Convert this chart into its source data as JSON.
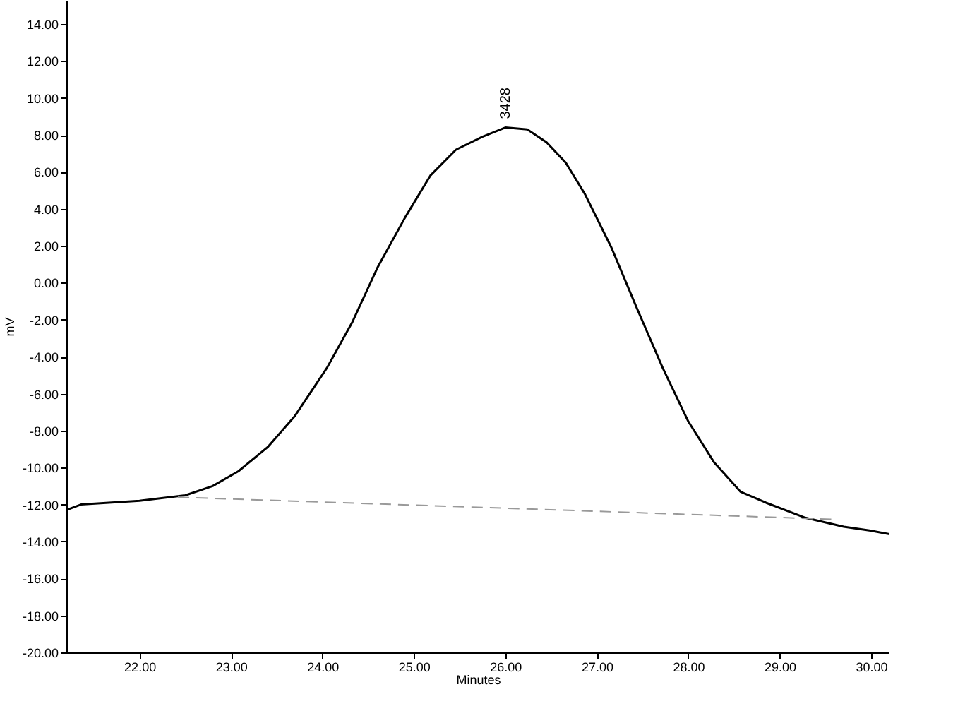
{
  "chart_data": {
    "type": "line",
    "xlabel": "Minutes",
    "ylabel": "mV",
    "marker": "none",
    "xlim": [
      21.2,
      30.2
    ],
    "ylim": [
      -20,
      15.3
    ],
    "xticks": [
      {
        "value": 22,
        "label": "22.00"
      },
      {
        "value": 23,
        "label": "23.00"
      },
      {
        "value": 24,
        "label": "24.00"
      },
      {
        "value": 25,
        "label": "25.00"
      },
      {
        "value": 26,
        "label": "26.00"
      },
      {
        "value": 27,
        "label": "27.00"
      },
      {
        "value": 28,
        "label": "28.00"
      },
      {
        "value": 29,
        "label": "29.00"
      },
      {
        "value": 30,
        "label": "30.00"
      }
    ],
    "yticks": [
      {
        "value": -20,
        "label": "-20.00"
      },
      {
        "value": -18,
        "label": "-18.00"
      },
      {
        "value": -16,
        "label": "-16.00"
      },
      {
        "value": -14,
        "label": "-14.00"
      },
      {
        "value": -12,
        "label": "-12.00"
      },
      {
        "value": -10,
        "label": "-10.00"
      },
      {
        "value": -8,
        "label": "-8.00"
      },
      {
        "value": -6,
        "label": "-6.00"
      },
      {
        "value": -4,
        "label": "-4.00"
      },
      {
        "value": -2,
        "label": "-2.00"
      },
      {
        "value": 0,
        "label": "0.00"
      },
      {
        "value": 2,
        "label": "2.00"
      },
      {
        "value": 4,
        "label": "4.00"
      },
      {
        "value": 6,
        "label": "6.00"
      },
      {
        "value": 8,
        "label": "8.00"
      },
      {
        "value": 10,
        "label": "10.00"
      },
      {
        "value": 12,
        "label": "12.00"
      },
      {
        "value": 14,
        "label": "14.00"
      }
    ],
    "series": [
      {
        "color": "#000000",
        "line_style": "solid",
        "x": [
          21.2,
          21.36,
          22.0,
          22.5,
          22.8,
          23.08,
          23.4,
          23.7,
          24.05,
          24.33,
          24.6,
          24.9,
          25.18,
          25.46,
          25.75,
          26.0,
          26.24,
          26.45,
          26.66,
          26.87,
          27.16,
          27.44,
          27.72,
          28.0,
          28.28,
          28.57,
          28.85,
          29.27,
          29.7,
          29.98,
          30.2
        ],
        "values": [
          -12.3,
          -12.0,
          -11.8,
          -11.5,
          -11.0,
          -10.2,
          -8.9,
          -7.2,
          -4.6,
          -2.1,
          0.8,
          3.5,
          5.8,
          7.2,
          7.9,
          8.4,
          8.3,
          7.6,
          6.5,
          4.8,
          1.9,
          -1.4,
          -4.6,
          -7.5,
          -9.7,
          -11.3,
          -11.9,
          -12.7,
          -13.2,
          -13.4,
          -13.6
        ]
      },
      {
        "color": "#999999",
        "line_style": "dashed",
        "x": [
          22.42,
          29.59
        ],
        "values": [
          -11.6,
          -12.8
        ]
      }
    ],
    "annotations": [
      {
        "text": "3428",
        "x": 26.0,
        "y": 8.4
      }
    ]
  }
}
